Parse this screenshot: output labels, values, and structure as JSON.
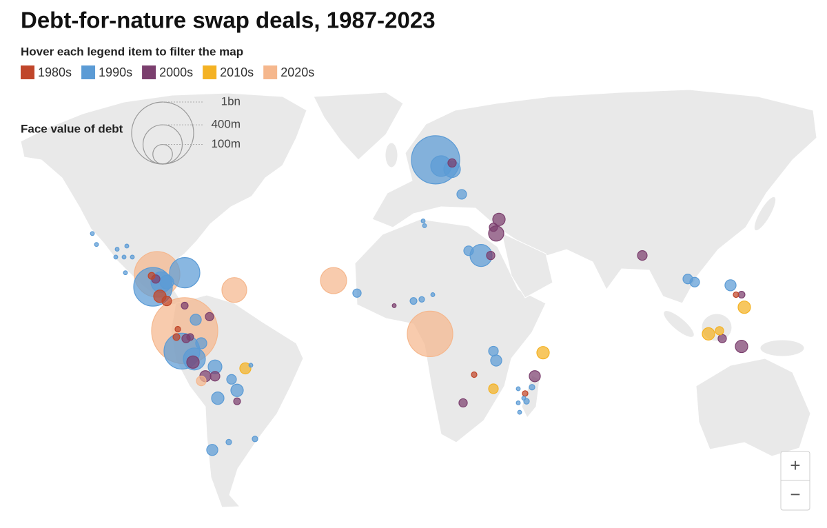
{
  "chart_data": {
    "type": "bubble-map",
    "title": "Debt-for-nature swap deals, 1987-2023",
    "subtitle": "Hover each legend item to filter the map",
    "size_legend": {
      "title": "Face value of debt",
      "ticks": [
        {
          "value": 1000,
          "label": "1bn"
        },
        {
          "value": 400,
          "label": "400m"
        },
        {
          "value": 100,
          "label": "100m"
        }
      ]
    },
    "zoom_controls": [
      "+",
      "−"
    ],
    "series": [
      {
        "name": "1980s",
        "color": "#c0462a",
        "lon": [
          -87,
          -84.5,
          -81,
          -80.5,
          27,
          45.5,
          122,
          -90
        ],
        "lat": [
          9.5,
          8,
          -3.5,
          -1,
          -15.5,
          -21.5,
          10,
          16
        ],
        "values": [
          40,
          24,
          12,
          8,
          8,
          8,
          8,
          12
        ]
      },
      {
        "name": "1990s",
        "color": "#5b9bd5",
        "lon": [
          13,
          15,
          19,
          22.5,
          -78,
          -89.5,
          -79,
          -74.5,
          29.5,
          25,
          120,
          104.5,
          107,
          -111.5,
          -110,
          -102.5,
          -99,
          -100,
          -103,
          -97,
          -99.5,
          -68,
          43,
          45,
          46,
          43.5,
          48,
          43,
          34,
          35,
          -84.5,
          -67,
          -61,
          -59,
          -66,
          -72,
          -74,
          5,
          8,
          12,
          9,
          8.5,
          -15.5,
          -54,
          -62,
          -52.5,
          -86.5
        ],
        "lat": [
          53,
          51,
          50,
          42,
          17,
          12.5,
          -8,
          -10.5,
          22.5,
          24,
          13,
          15,
          14,
          29.5,
          26,
          24.5,
          25.5,
          22,
          22,
          22,
          17,
          -39.5,
          -20,
          -23,
          -24,
          -27.5,
          -19.5,
          -24.5,
          -8,
          -11,
          14,
          -13,
          -17,
          -20.5,
          -23,
          -5.5,
          2,
          8,
          8.5,
          10,
          32,
          33.5,
          10.5,
          -12.5,
          -37,
          -36,
          14
        ],
        "values": [
          605,
          111,
          71,
          24,
          239,
          387,
          334,
          126,
          126,
          24,
          32,
          24,
          24,
          4,
          4,
          4,
          4,
          4,
          4,
          4,
          4,
          32,
          4,
          4,
          8,
          4,
          8,
          4,
          24,
          32,
          49,
          49,
          24,
          40,
          40,
          32,
          32,
          12,
          8,
          4,
          4,
          4,
          18,
          4,
          8,
          8,
          111
        ]
      },
      {
        "name": "2000s",
        "color": "#7b3f6e",
        "lon": [
          36,
          35,
          34,
          33,
          88,
          -69,
          -75,
          -70.5,
          -67,
          -77.5,
          -76,
          49,
          23,
          124,
          117,
          124,
          19,
          -88.5,
          -59,
          -2,
          -78
        ],
        "lat": [
          34,
          29.5,
          31.5,
          22.5,
          22.5,
          3,
          -11.5,
          -16,
          -16,
          -4,
          -3.5,
          -16,
          -24.5,
          -6.5,
          -4,
          10,
          52,
          15,
          -24,
          6.5,
          6.5
        ],
        "values": [
          40,
          60,
          18,
          18,
          24,
          18,
          40,
          32,
          24,
          18,
          12,
          32,
          18,
          40,
          18,
          12,
          18,
          18,
          12,
          4,
          12
        ]
      },
      {
        "name": "2010s",
        "color": "#f4b223",
        "lon": [
          52,
          34,
          -56,
          112,
          116,
          125
        ],
        "lat": [
          -8.5,
          -20,
          -13.5,
          -2.5,
          -1.5,
          6
        ],
        "values": [
          40,
          24,
          32,
          40,
          18,
          40
        ]
      },
      {
        "name": "2020s",
        "color": "#f5b78d",
        "lon": [
          -88,
          -78,
          -60,
          -24,
          11,
          -72
        ],
        "lat": [
          16.5,
          -1.5,
          11.5,
          14.5,
          -2.5,
          -17.5
        ],
        "values": [
          538,
          1138,
          160,
          178,
          538,
          24
        ]
      }
    ]
  }
}
